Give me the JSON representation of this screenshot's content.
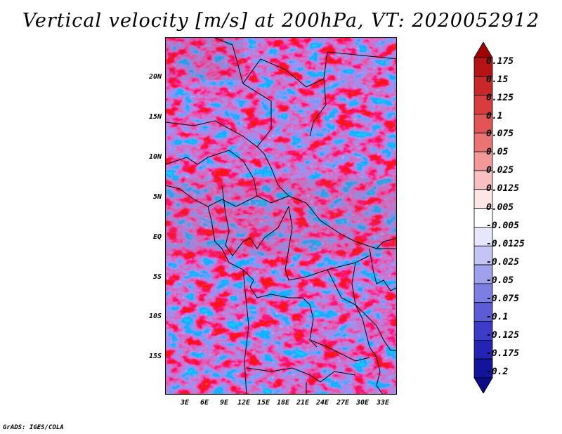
{
  "title": "Vertical velocity [m/s] at 200hPa, VT: 2020052912",
  "footer": "GrADS: IGES/COLA",
  "map": {
    "y_axis_labels": [
      "20N",
      "15N",
      "10N",
      "5N",
      "EQ",
      "5S",
      "10S",
      "15S"
    ],
    "x_axis_labels": [
      "3E",
      "6E",
      "9E",
      "12E",
      "15E",
      "18E",
      "21E",
      "24E",
      "27E",
      "30E",
      "33E"
    ]
  },
  "colorbar": {
    "levels": [
      "0.175",
      "0.15",
      "0.125",
      "0.1",
      "0.075",
      "0.05",
      "0.025",
      "0.0125",
      "0.005",
      "-0.005",
      "-0.0125",
      "-0.025",
      "-0.05",
      "-0.075",
      "-0.1",
      "-0.125",
      "-0.175",
      "-0.2"
    ],
    "colors": [
      "#a00000",
      "#b61414",
      "#c82828",
      "#d83c3c",
      "#e25555",
      "#ea7474",
      "#f29898",
      "#f8c0c0",
      "#fde6e6",
      "#ffffff",
      "#e6e6fd",
      "#c4c4f5",
      "#a0a0ec",
      "#7e7ee2",
      "#5c5cd6",
      "#3c3cc8",
      "#2424b4",
      "#14149a",
      "#0c0c88"
    ]
  }
}
